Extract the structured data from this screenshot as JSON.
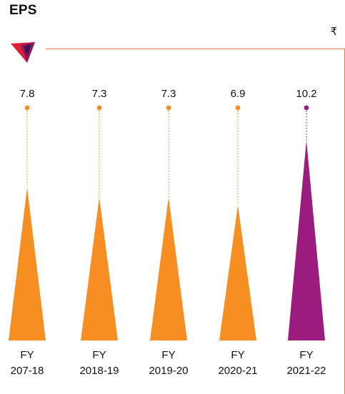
{
  "header": {
    "title": "EPS",
    "unit": "₹"
  },
  "colors": {
    "default_bar": "#f78e22",
    "highlight_bar": "#9b1b7e",
    "frame": "#e27c4a",
    "logo_primary": "#e01f36",
    "logo_secondary": "#8e1a5e"
  },
  "chart_data": {
    "type": "bar",
    "mark_shape": "triangle-lollipop",
    "title": "EPS",
    "unit": "₹",
    "categories": [
      "FY 207-18",
      "FY 2018-19",
      "FY 2019-20",
      "FY 2020-21",
      "FY 2021-22"
    ],
    "category_lines": [
      [
        "FY",
        "207-18"
      ],
      [
        "FY",
        "2018-19"
      ],
      [
        "FY",
        "2019-20"
      ],
      [
        "FY",
        "2020-21"
      ],
      [
        "FY",
        "2021-22"
      ]
    ],
    "values": [
      7.8,
      7.3,
      7.3,
      6.9,
      10.2
    ],
    "value_labels": [
      "7.8",
      "7.3",
      "7.3",
      "6.9",
      "10.2"
    ],
    "highlight_index": 4,
    "grid": false,
    "legend": "none"
  }
}
